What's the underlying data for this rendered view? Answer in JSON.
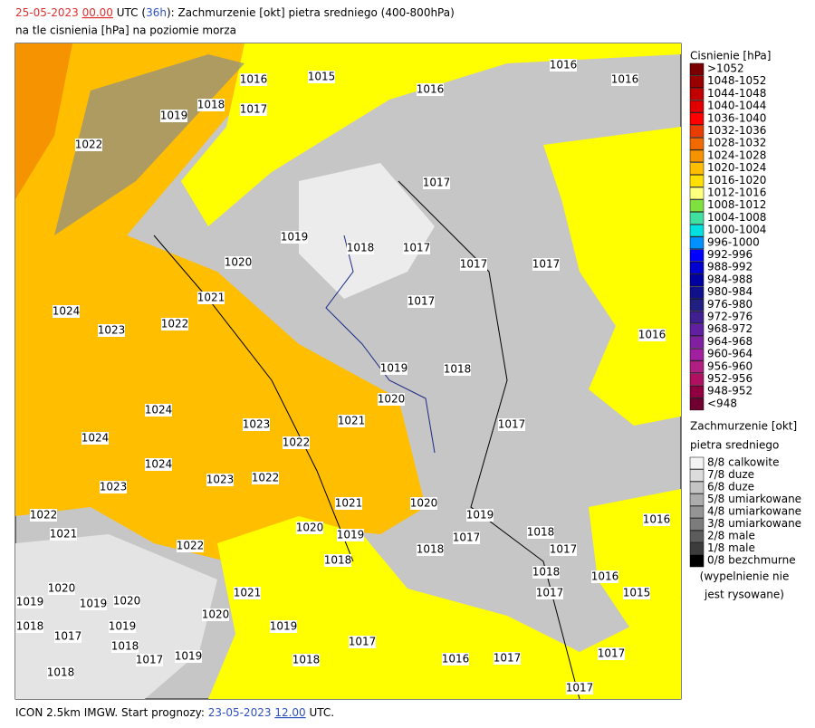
{
  "header": {
    "date": "25-05-2023",
    "hour": "00.00",
    "zone": "UTC (",
    "lead": "36h",
    "title": "): Zachmurzenie [okt] pietra sredniego (400-800hPa)",
    "subtitle": "na tle cisnienia [hPa] na poziomie morza"
  },
  "footer": {
    "model": "ICON 2.5km IMGW. Start prognozy:",
    "start_date": "23-05-2023",
    "start_hour": "12.00",
    "zone": "UTC."
  },
  "pressure_legend": {
    "title": "Cisnienie [hPa]",
    "items": [
      {
        "label": ">1052",
        "color": "#7a0000"
      },
      {
        "label": "1048-1052",
        "color": "#990000"
      },
      {
        "label": "1044-1048",
        "color": "#c00000"
      },
      {
        "label": "1040-1044",
        "color": "#e00000"
      },
      {
        "label": "1036-1040",
        "color": "#ff0000"
      },
      {
        "label": "1032-1036",
        "color": "#e83c00"
      },
      {
        "label": "1028-1032",
        "color": "#f06a00"
      },
      {
        "label": "1024-1028",
        "color": "#f59300"
      },
      {
        "label": "1020-1024",
        "color": "#ffbe00"
      },
      {
        "label": "1016-1020",
        "color": "#ffe000"
      },
      {
        "label": "1012-1016",
        "color": "#ffff80"
      },
      {
        "label": "1008-1012",
        "color": "#80e040"
      },
      {
        "label": "1004-1008",
        "color": "#40e0a0"
      },
      {
        "label": "1000-1004",
        "color": "#00e0e0"
      },
      {
        "label": "996-1000",
        "color": "#0090ff"
      },
      {
        "label": "992-996",
        "color": "#0000ff"
      },
      {
        "label": "988-992",
        "color": "#0000d0"
      },
      {
        "label": "984-988",
        "color": "#0000a0"
      },
      {
        "label": "980-984",
        "color": "#10108a"
      },
      {
        "label": "976-980",
        "color": "#202080"
      },
      {
        "label": "972-976",
        "color": "#402090"
      },
      {
        "label": "968-972",
        "color": "#6020a0"
      },
      {
        "label": "964-968",
        "color": "#8020a0"
      },
      {
        "label": "960-964",
        "color": "#a020a0"
      },
      {
        "label": "956-960",
        "color": "#b02080"
      },
      {
        "label": "952-956",
        "color": "#b01060"
      },
      {
        "label": "948-952",
        "color": "#900040"
      },
      {
        "label": "<948",
        "color": "#700030"
      }
    ]
  },
  "cloud_legend": {
    "title": [
      "Zachmurzenie [okt]",
      "pietra sredniego"
    ],
    "items": [
      {
        "label": "8/8 calkowite",
        "color": "#f4f4f4"
      },
      {
        "label": "7/8 duze",
        "color": "#dcdcdc"
      },
      {
        "label": "6/8 duze",
        "color": "#c4c4c4"
      },
      {
        "label": "5/8 umiarkowane",
        "color": "#acacac"
      },
      {
        "label": "4/8 umiarkowane",
        "color": "#949494"
      },
      {
        "label": "3/8 umiarkowane",
        "color": "#7c7c7c"
      },
      {
        "label": "2/8 male",
        "color": "#5c5c5c"
      },
      {
        "label": "1/8 male",
        "color": "#3c3c3c"
      },
      {
        "label": "0/8 bezchmurne",
        "color": "#000000"
      }
    ],
    "note": [
      "(wypelnienie nie",
      "jest rysowane)"
    ]
  },
  "map": {
    "isobar_labels": [
      "1016",
      "1015",
      "1018",
      "1017",
      "1019",
      "1016",
      "1016",
      "1016",
      "1022",
      "1017",
      "1019",
      "1018",
      "1017",
      "1017",
      "1017",
      "1020",
      "1021",
      "1017",
      "1024",
      "1023",
      "1022",
      "1016",
      "1019",
      "1018",
      "1020",
      "1024",
      "1023",
      "1021",
      "1017",
      "1024",
      "1022",
      "1024",
      "1023",
      "1022",
      "1023",
      "1021",
      "1020",
      "1019",
      "1022",
      "1021",
      "1020",
      "1019",
      "1018",
      "1017",
      "1022",
      "1018",
      "1017",
      "1018",
      "1016",
      "1018",
      "1016",
      "1017",
      "1015",
      "1020",
      "1021",
      "1019",
      "1019",
      "1020",
      "1020",
      "1018",
      "1019",
      "1017",
      "1019",
      "1018",
      "1017",
      "1016",
      "1017",
      "1017",
      "1018",
      "1017",
      "1019",
      "1018",
      "1017"
    ]
  }
}
